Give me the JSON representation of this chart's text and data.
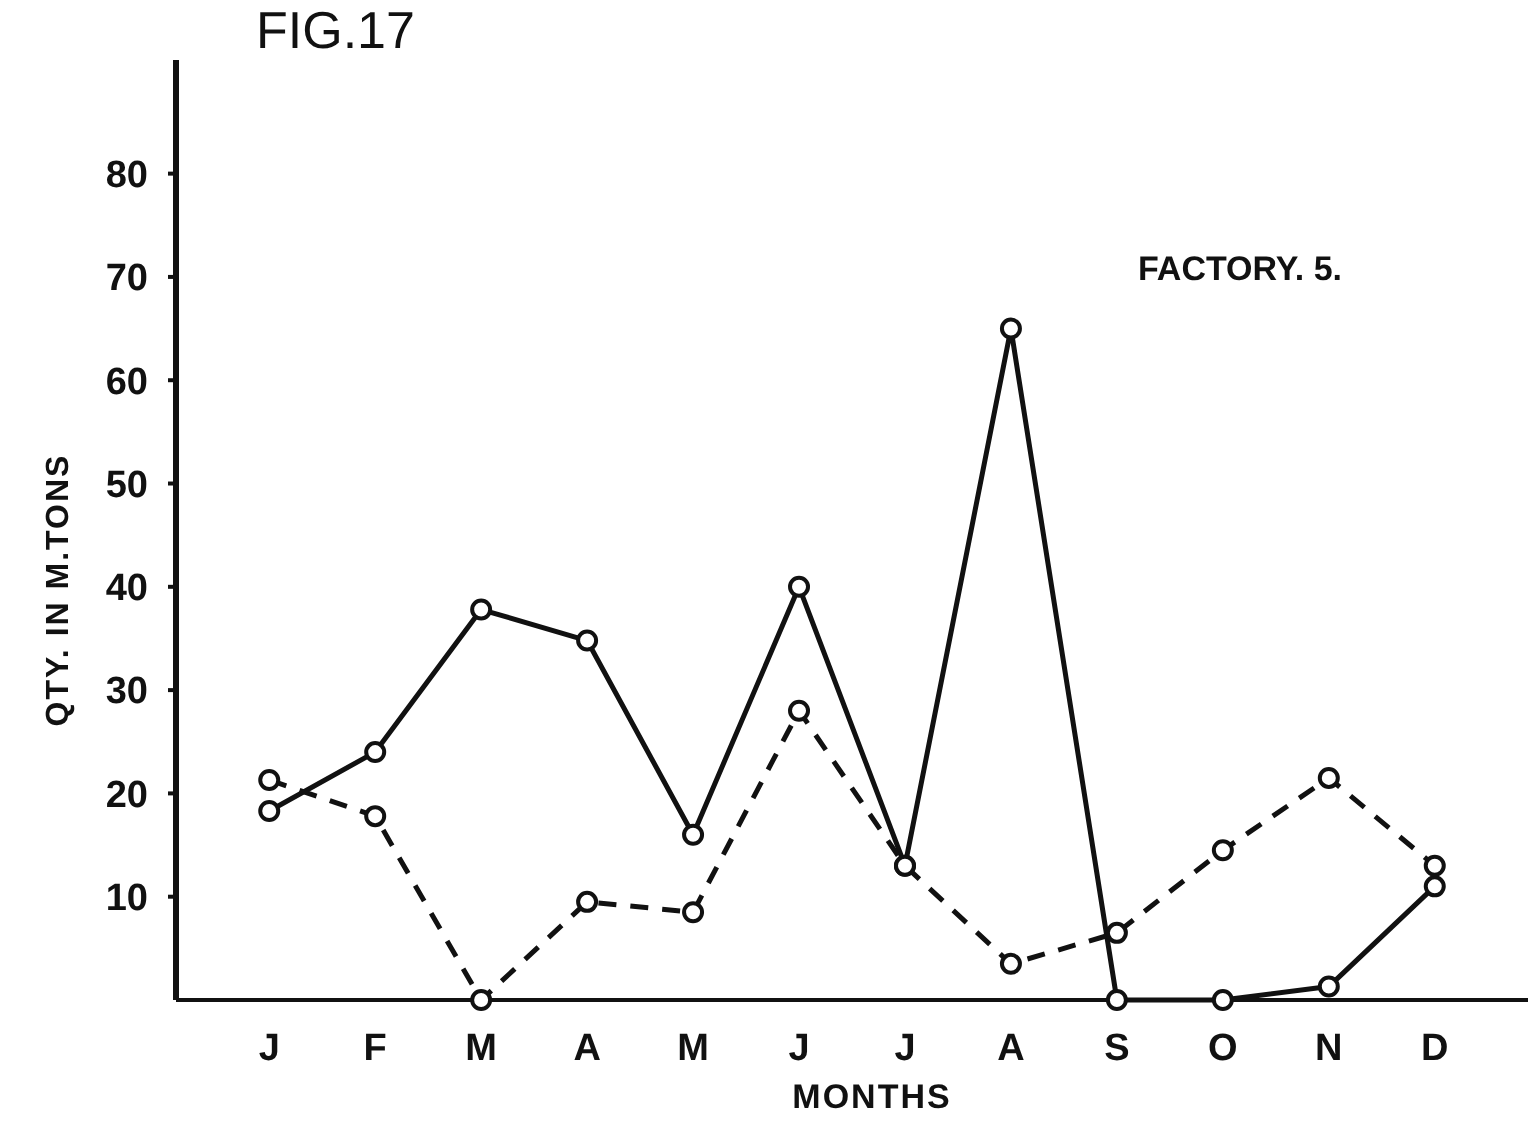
{
  "chart_data": {
    "type": "line",
    "title": "FIG.17",
    "xlabel": "MONTHS",
    "ylabel": "QTY. IN M.TONS",
    "annotations": [
      "FACTORY. 5."
    ],
    "categories": [
      "J",
      "F",
      "M",
      "A",
      "M",
      "J",
      "J",
      "A",
      "S",
      "O",
      "N",
      "D"
    ],
    "series": [
      {
        "color": "#111111",
        "line_style": "solid",
        "values": [
          18.3,
          24,
          37.8,
          34.8,
          16,
          40,
          13,
          65,
          0,
          0,
          1.3,
          11
        ]
      },
      {
        "color": "#111111",
        "line_style": "dashed",
        "values": [
          21.3,
          17.8,
          0,
          9.5,
          8.5,
          28,
          13,
          3.5,
          6.5,
          14.5,
          21.5,
          13
        ]
      }
    ],
    "ylim": [
      0,
      91
    ],
    "yticks": [
      10,
      20,
      30,
      40,
      50,
      60,
      70,
      80
    ],
    "marker": "circle",
    "grid": false
  }
}
